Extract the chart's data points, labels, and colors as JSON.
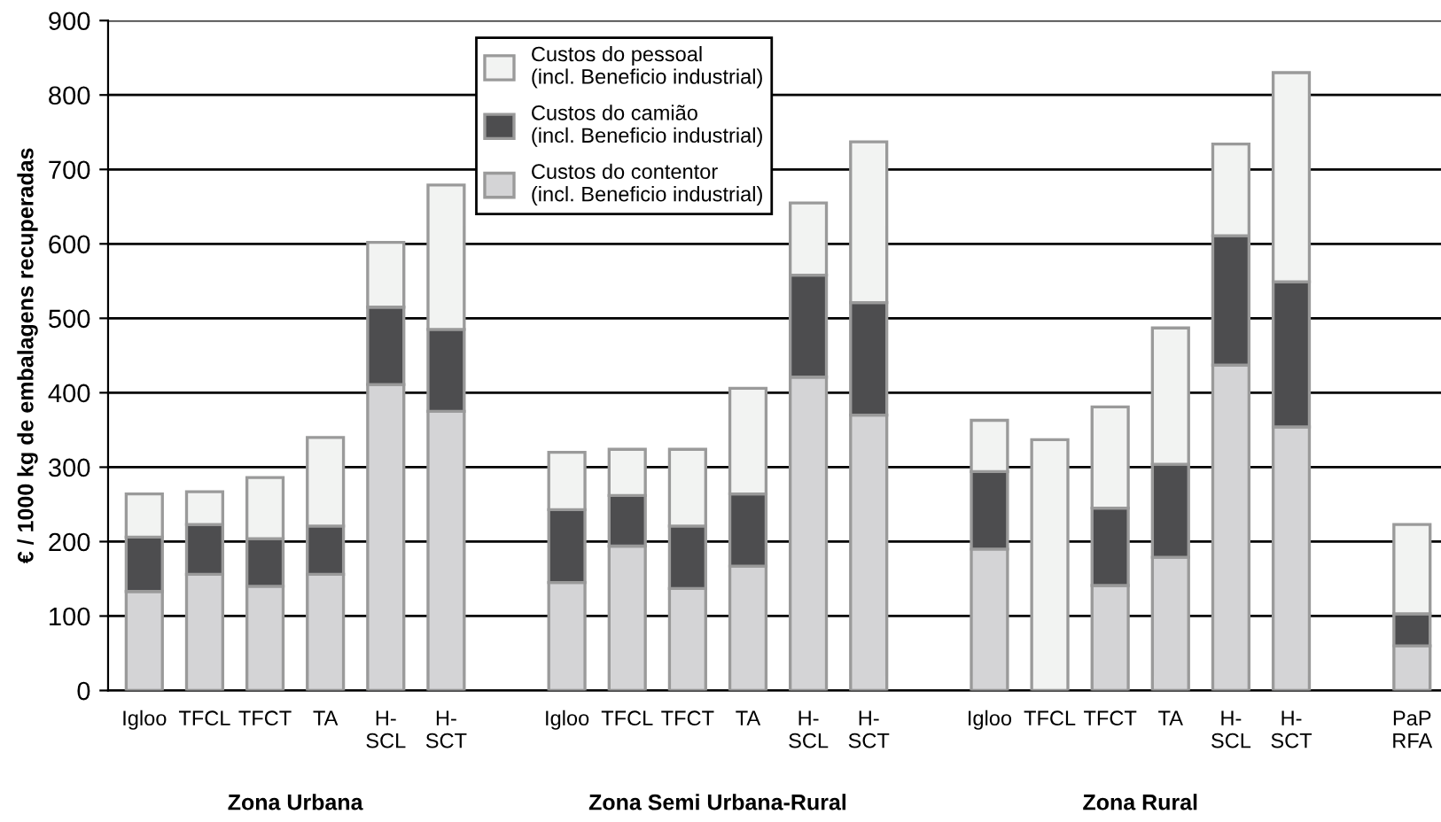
{
  "chart_data": {
    "type": "bar",
    "stacked": true,
    "ylabel": "€ / 1000 kg de embalagens recuperadas",
    "categories": [
      "Igloo",
      "TFCL",
      "TFCT",
      "TA",
      "H-\nSCL",
      "H-\nSCT",
      null,
      "Igloo",
      "TFCL",
      "TFCT",
      "TA",
      "H-\nSCL",
      "H-\nSCT",
      null,
      "Igloo",
      "TFCL",
      "TFCT",
      "TA",
      "H-\nSCL",
      "H-\nSCT",
      null,
      "PaP\nRFA"
    ],
    "series": [
      {
        "name": "Custos do contentor\n(incl. Beneficio industrial)",
        "color": "#d4d4d6",
        "values": [
          133,
          156,
          140,
          156,
          411,
          375,
          null,
          145,
          194,
          137,
          167,
          421,
          370,
          null,
          190,
          null,
          141,
          179,
          437,
          354,
          null,
          60
        ]
      },
      {
        "name": "Custos do camião\n(incl. Beneficio industrial)",
        "color": "#4d4d4f",
        "values": [
          73,
          67,
          64,
          65,
          104,
          110,
          null,
          98,
          68,
          84,
          97,
          137,
          151,
          null,
          104,
          null,
          104,
          125,
          174,
          195,
          null,
          43
        ]
      },
      {
        "name": "Custos do pessoal\n(incl. Beneficio industrial)",
        "color": "#f2f3f2",
        "values": [
          58,
          44,
          82,
          119,
          87,
          194,
          null,
          77,
          62,
          103,
          142,
          97,
          216,
          null,
          69,
          337,
          136,
          183,
          123,
          281,
          null,
          120
        ]
      }
    ],
    "ylim": [
      0,
      900
    ],
    "yticks": [
      0,
      100,
      200,
      300,
      400,
      500,
      600,
      700,
      800,
      900
    ],
    "grid": "y",
    "legend": "top",
    "annotations": [
      "Zona Urbana",
      "Zona Semi Urbana-Rural",
      "Zona Rural"
    ]
  }
}
